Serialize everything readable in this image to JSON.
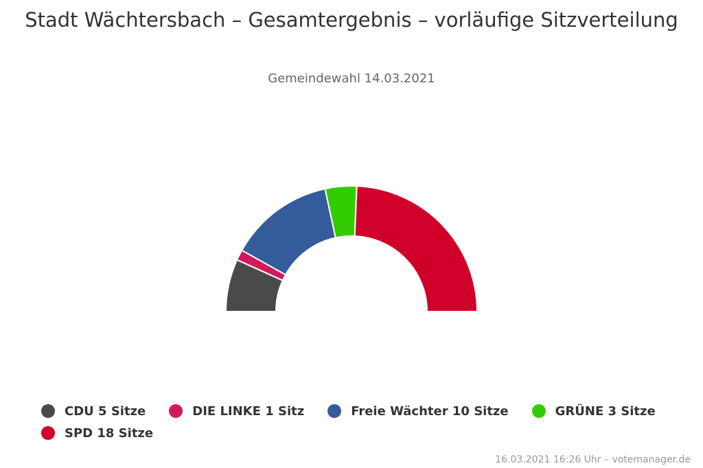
{
  "chart_data": {
    "type": "pie",
    "variant": "semicircle",
    "title": "Stadt Wächtersbach – Gesamtergebnis – vorläufige Sitzverteilung",
    "subtitle": "Gemeindewahl 14.03.2021",
    "series": [
      {
        "name": "CDU",
        "value": 5,
        "label": "CDU 5 Sitze",
        "color": "#4a4a4a"
      },
      {
        "name": "DIE LINKE",
        "value": 1,
        "label": "DIE LINKE 1 Sitz",
        "color": "#d01a5b"
      },
      {
        "name": "Freie Wächter",
        "value": 10,
        "label": "Freie Wächter 10 Sitze",
        "color": "#355c9a"
      },
      {
        "name": "GRÜNE",
        "value": 3,
        "label": "GRÜNE 3 Sitze",
        "color": "#33cc00"
      },
      {
        "name": "SPD",
        "value": 18,
        "label": "SPD 18 Sitze",
        "color": "#d0002a"
      }
    ],
    "legend_position": "bottom"
  },
  "credits": "16.03.2021 16:26 Uhr – votemanager.de"
}
